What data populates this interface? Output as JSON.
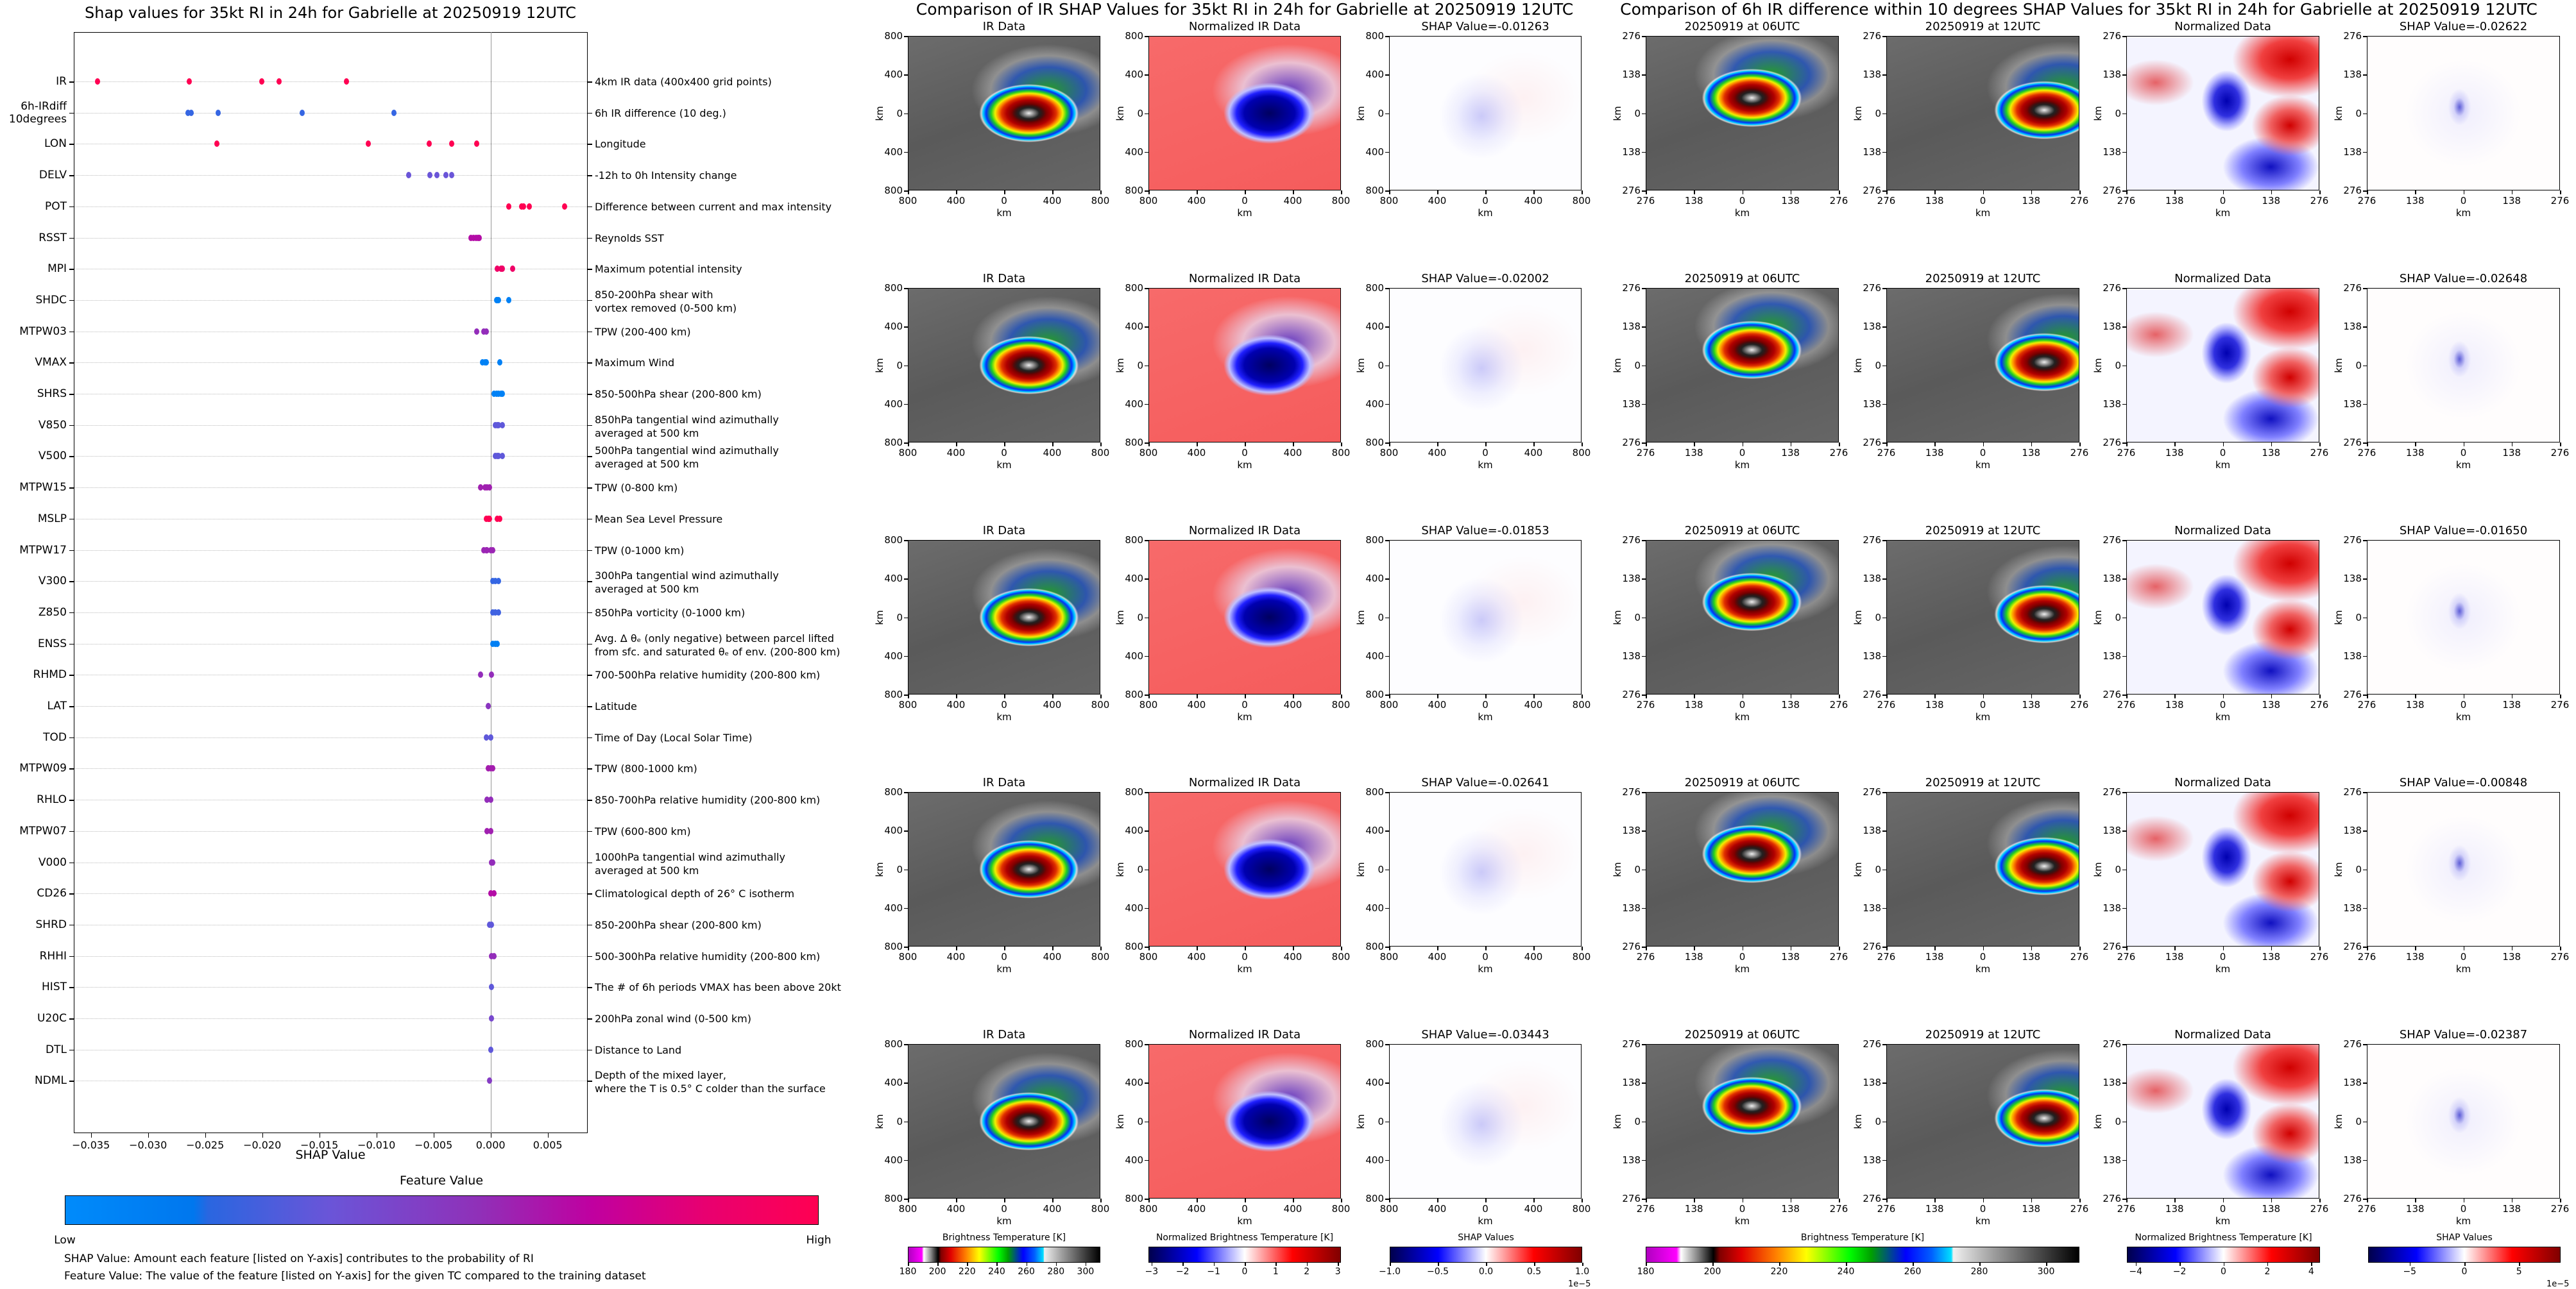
{
  "chart_data": {
    "type": "scatter",
    "title": "Shap values for 35kt RI in 24h for Gabrielle at 20250919 12UTC",
    "xlabel": "SHAP Value",
    "ylabel": "",
    "xlim": [
      -0.0365,
      0.0085
    ],
    "xticks": [
      -0.035,
      -0.03,
      -0.025,
      -0.02,
      -0.015,
      -0.01,
      -0.005,
      0.0,
      0.005
    ],
    "xtick_labels": [
      "−0.035",
      "−0.030",
      "−0.025",
      "−0.020",
      "−0.015",
      "−0.010",
      "−0.005",
      "0.000",
      "0.005"
    ],
    "grid": "horizontal dotted",
    "zero_line": true,
    "features": [
      {
        "name": "IR",
        "description": "4km IR data (400x400 grid points)",
        "shap_values": [
          -0.01263,
          -0.02002,
          -0.01853,
          -0.02641,
          -0.03443
        ],
        "feature_value": 1.0
      },
      {
        "name": "6h-IRdiff\n10degrees",
        "description": "6h IR difference (10 deg.)",
        "shap_values": [
          -0.02622,
          -0.02648,
          -0.0165,
          -0.00848,
          -0.02387
        ],
        "feature_value": 0.3
      },
      {
        "name": "LON",
        "description": "Longitude",
        "shap_values": [
          -0.024,
          -0.0107,
          -0.0054,
          -0.0034,
          -0.0012
        ],
        "feature_value": 1.0
      },
      {
        "name": "DELV",
        "description": "-12h to 0h Intensity change",
        "shap_values": [
          -0.0072,
          -0.0053,
          -0.0047,
          -0.0039,
          -0.0034
        ],
        "feature_value": 0.4
      },
      {
        "name": "POT",
        "description": "Difference between current and max intensity",
        "shap_values": [
          0.0016,
          0.0027,
          0.0029,
          0.0034,
          0.0065
        ],
        "feature_value": 1.0
      },
      {
        "name": "RSST",
        "description": "Reynolds SST",
        "shap_values": [
          -0.0017,
          -0.0015,
          -0.0013,
          -0.0011,
          -0.001
        ],
        "feature_value": 0.72
      },
      {
        "name": "MPI",
        "description": "Maximum potential intensity",
        "shap_values": [
          0.0006,
          0.0009,
          0.001,
          0.0019
        ],
        "feature_value": 0.95
      },
      {
        "name": "SHDC",
        "description": "850-200hPa shear with\nvortex removed (0-500 km)",
        "shap_values": [
          0.0005,
          0.0006,
          0.0007,
          0.0016
        ],
        "feature_value": 0.1
      },
      {
        "name": "MTPW03",
        "description": "TPW (200-400 km)",
        "shap_values": [
          -0.0012,
          -0.0006,
          -0.0004
        ],
        "feature_value": 0.55
      },
      {
        "name": "VMAX",
        "description": "Maximum Wind",
        "shap_values": [
          -0.0007,
          -0.0005,
          -0.0004,
          0.0008
        ],
        "feature_value": 0.1
      },
      {
        "name": "SHRS",
        "description": "850-500hPa shear (200-800 km)",
        "shap_values": [
          0.0003,
          0.0005,
          0.0007,
          0.0009,
          0.001
        ],
        "feature_value": 0.1
      },
      {
        "name": "V850",
        "description": "850hPa tangential wind azimuthally\naveraged at 500 km",
        "shap_values": [
          0.0004,
          0.0006,
          0.0007,
          0.001
        ],
        "feature_value": 0.38
      },
      {
        "name": "V500",
        "description": "500hPa tangential wind azimuthally\naveraged at 500 km",
        "shap_values": [
          0.0004,
          0.0006,
          0.0007,
          0.001
        ],
        "feature_value": 0.38
      },
      {
        "name": "MTPW15",
        "description": "TPW (0-800 km)",
        "shap_values": [
          -0.0009,
          -0.0005,
          -0.0003,
          -0.0001
        ],
        "feature_value": 0.6
      },
      {
        "name": "MSLP",
        "description": "Mean Sea Level Pressure",
        "shap_values": [
          -0.0004,
          -0.0002,
          -0.0001,
          0.0006,
          0.0008
        ],
        "feature_value": 1.0
      },
      {
        "name": "MTPW17",
        "description": "TPW (0-1000 km)",
        "shap_values": [
          -0.0006,
          -0.0004,
          -0.0003,
          0.0,
          0.0002
        ],
        "feature_value": 0.58
      },
      {
        "name": "V300",
        "description": "300hPa tangential wind azimuthally\naveraged at 500 km",
        "shap_values": [
          0.0002,
          0.0004,
          0.0007
        ],
        "feature_value": 0.3
      },
      {
        "name": "Z850",
        "description": "850hPa vorticity (0-1000 km)",
        "shap_values": [
          0.0002,
          0.0004,
          0.0007
        ],
        "feature_value": 0.32
      },
      {
        "name": "ENSS",
        "description": "Avg. Δ θₑ (only negative) between parcel lifted\nfrom sfc. and saturated θₑ of env. (200-800 km)",
        "shap_values": [
          0.0002,
          0.0004,
          0.0006
        ],
        "feature_value": 0.12
      },
      {
        "name": "RHMD",
        "description": "700-500hPa relative humidity (200-800 km)",
        "shap_values": [
          -0.0009,
          0.0001
        ],
        "feature_value": 0.55
      },
      {
        "name": "LAT",
        "description": "Latitude",
        "shap_values": [
          -0.0002
        ],
        "feature_value": 0.52
      },
      {
        "name": "TOD",
        "description": "Time of Day (Local Solar Time)",
        "shap_values": [
          -0.0004,
          0.0
        ],
        "feature_value": 0.38
      },
      {
        "name": "MTPW09",
        "description": "TPW (800-1000 km)",
        "shap_values": [
          -0.0002,
          0.0,
          0.0002
        ],
        "feature_value": 0.62
      },
      {
        "name": "RHLO",
        "description": "850-700hPa relative humidity (200-800 km)",
        "shap_values": [
          -0.0003,
          0.0
        ],
        "feature_value": 0.55
      },
      {
        "name": "MTPW07",
        "description": "TPW (600-800 km)",
        "shap_values": [
          -0.0003,
          0.0
        ],
        "feature_value": 0.6
      },
      {
        "name": "V000",
        "description": "1000hPa tangential wind azimuthally\naveraged at 500 km",
        "shap_values": [
          0.0001,
          0.0002
        ],
        "feature_value": 0.55
      },
      {
        "name": "CD26",
        "description": "Climatological depth of 26° C isotherm",
        "shap_values": [
          0.0,
          0.0003
        ],
        "feature_value": 0.72
      },
      {
        "name": "SHRD",
        "description": "850-200hPa shear (200-800 km)",
        "shap_values": [
          -0.0001,
          0.0001
        ],
        "feature_value": 0.38
      },
      {
        "name": "RHHI",
        "description": "500-300hPa relative humidity (200-800 km)",
        "shap_values": [
          0.0001,
          0.0003
        ],
        "feature_value": 0.55
      },
      {
        "name": "HIST",
        "description": "The # of 6h periods VMAX has been above 20kt",
        "shap_values": [
          0.0001
        ],
        "feature_value": 0.38
      },
      {
        "name": "U20C",
        "description": "200hPa zonal wind (0-500 km)",
        "shap_values": [
          0.0001
        ],
        "feature_value": 0.45
      },
      {
        "name": "DTL",
        "description": "Distance to Land",
        "shap_values": [
          0.0
        ],
        "feature_value": 0.38
      },
      {
        "name": "NDML",
        "description": "Depth of the mixed layer,\nwhere the T is 0.5° C colder than the surface",
        "shap_values": [
          -0.0001
        ],
        "feature_value": 0.5
      }
    ],
    "colorbar": {
      "title": "Feature Value",
      "low": "Low",
      "high": "High",
      "colors": [
        "#008bfb",
        "#0077ee",
        "#6a55d8",
        "#a020b0",
        "#c000a0",
        "#ff0052"
      ]
    }
  },
  "notes": [
    "SHAP Value: Amount each feature [listed on Y-axis] contributes to the probability of RI",
    "Feature Value: The value of the feature [listed on Y-axis] for the given TC compared to the training dataset"
  ],
  "ir_section": {
    "title": "Comparison of IR SHAP Values for 35kt RI in 24h for Gabrielle at 20250919 12UTC",
    "panel_titles": [
      "IR Data",
      "Normalized IR Data"
    ],
    "shap_prefix": "SHAP Value=",
    "shap_values": [
      "-0.01263",
      "-0.02002",
      "-0.01853",
      "-0.02641",
      "-0.03443"
    ],
    "yticks": [
      "800",
      "400",
      "0",
      "400",
      "800"
    ],
    "xticks": [
      "800",
      "400",
      "0",
      "400",
      "800"
    ],
    "axis_label": "km",
    "colorbars": [
      {
        "label": "Brightness Temperature [K]",
        "cmap": "ir",
        "range": [
          180,
          310
        ],
        "tick_values": [
          180,
          200,
          220,
          240,
          260,
          280,
          300
        ],
        "ticks": [
          "180",
          "200",
          "220",
          "240",
          "260",
          "280",
          "300"
        ]
      },
      {
        "label": "Normalized Brightness Temperature [K]",
        "cmap": "seismic",
        "range": [
          -3.1,
          3.1
        ],
        "tick_values": [
          -3,
          -2,
          -1,
          0,
          1,
          2,
          3
        ],
        "ticks": [
          "−3",
          "−2",
          "−1",
          "0",
          "1",
          "2",
          "3"
        ]
      },
      {
        "label": "SHAP Values",
        "cmap": "seismic",
        "range": [
          -1,
          1
        ],
        "tick_values": [
          -1,
          -0.5,
          0,
          0.5,
          1
        ],
        "ticks": [
          "−1.0",
          "−0.5",
          "0.0",
          "0.5",
          "1.0"
        ],
        "offset": "1e−5"
      }
    ]
  },
  "diff_section": {
    "title": "Comparison of 6h IR difference within 10 degrees SHAP Values for 35kt RI in 24h for Gabrielle at 20250919 12UTC",
    "panel_titles": [
      "20250919 at 06UTC",
      "20250919 at 12UTC",
      "Normalized Data"
    ],
    "shap_prefix": "SHAP Value=",
    "shap_values": [
      "-0.02622",
      "-0.02648",
      "-0.01650",
      "-0.00848",
      "-0.02387"
    ],
    "yticks": [
      "276",
      "138",
      "0",
      "138",
      "276"
    ],
    "xticks": [
      "276",
      "138",
      "0",
      "138",
      "276"
    ],
    "axis_label": "km",
    "colorbars": [
      {
        "label": "Brightness Temperature [K]",
        "cmap": "ir",
        "range": [
          180,
          310
        ],
        "tick_values": [
          180,
          200,
          220,
          240,
          260,
          280,
          300
        ],
        "ticks": [
          "180",
          "200",
          "220",
          "240",
          "260",
          "280",
          "300"
        ]
      },
      {
        "label": "Normalized Brightness Temperature [K]",
        "cmap": "seismic",
        "range": [
          -4.4,
          4.4
        ],
        "tick_values": [
          -4,
          -2,
          0,
          2,
          4
        ],
        "ticks": [
          "−4",
          "−2",
          "0",
          "2",
          "4"
        ]
      },
      {
        "label": "SHAP Values",
        "cmap": "seismic",
        "range": [
          -8.8,
          8.8
        ],
        "tick_values": [
          -5,
          0,
          5
        ],
        "ticks": [
          "−5",
          "0",
          "5"
        ],
        "offset": "1e−5"
      }
    ]
  }
}
